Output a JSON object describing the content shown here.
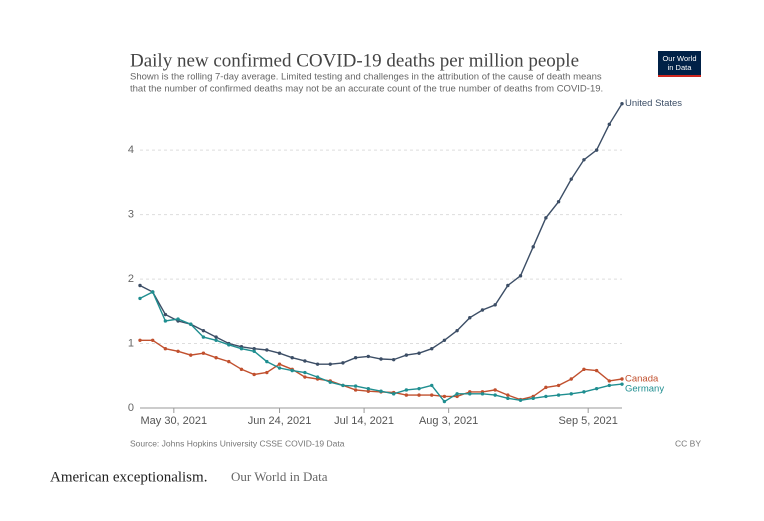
{
  "chart_data": {
    "type": "line",
    "title": "Daily new confirmed COVID-19 deaths per million people",
    "subtitle": [
      "Shown is the rolling 7-day average. Limited testing and challenges in the attribution of the cause of death means",
      "that the number of confirmed deaths may not be an accurate count of the true number of deaths from COVID-19."
    ],
    "logo": [
      "Our World",
      "in Data"
    ],
    "source": "Source: Johns Hopkins University CSSE COVID-19 Data",
    "license": "CC BY",
    "x": [
      "2021-05-22",
      "2021-05-25",
      "2021-05-28",
      "2021-05-31",
      "2021-06-03",
      "2021-06-06",
      "2021-06-09",
      "2021-06-12",
      "2021-06-15",
      "2021-06-18",
      "2021-06-21",
      "2021-06-24",
      "2021-06-27",
      "2021-06-30",
      "2021-07-03",
      "2021-07-06",
      "2021-07-09",
      "2021-07-12",
      "2021-07-15",
      "2021-07-18",
      "2021-07-21",
      "2021-07-24",
      "2021-07-27",
      "2021-07-30",
      "2021-08-02",
      "2021-08-05",
      "2021-08-08",
      "2021-08-11",
      "2021-08-14",
      "2021-08-17",
      "2021-08-20",
      "2021-08-23",
      "2021-08-26",
      "2021-08-29",
      "2021-09-01",
      "2021-09-04",
      "2021-09-07",
      "2021-09-10",
      "2021-09-13"
    ],
    "series": [
      {
        "name": "United States",
        "color": "#3c4e66",
        "values": [
          1.9,
          1.8,
          1.45,
          1.35,
          1.3,
          1.2,
          1.1,
          1.0,
          0.95,
          0.92,
          0.9,
          0.85,
          0.78,
          0.73,
          0.68,
          0.68,
          0.7,
          0.78,
          0.8,
          0.76,
          0.75,
          0.82,
          0.85,
          0.92,
          1.05,
          1.2,
          1.4,
          1.52,
          1.6,
          1.9,
          2.05,
          2.5,
          2.95,
          3.2,
          3.55,
          3.85,
          4.0,
          4.4,
          4.72
        ]
      },
      {
        "name": "Canada",
        "color": "#c1502e",
        "values": [
          1.05,
          1.05,
          0.92,
          0.88,
          0.82,
          0.85,
          0.78,
          0.72,
          0.6,
          0.52,
          0.55,
          0.68,
          0.6,
          0.48,
          0.45,
          0.42,
          0.35,
          0.28,
          0.26,
          0.25,
          0.24,
          0.2,
          0.2,
          0.2,
          0.18,
          0.18,
          0.25,
          0.25,
          0.28,
          0.2,
          0.13,
          0.18,
          0.32,
          0.35,
          0.45,
          0.6,
          0.58,
          0.42,
          0.45
        ]
      },
      {
        "name": "Germany",
        "color": "#1f8e90",
        "values": [
          1.7,
          1.8,
          1.35,
          1.38,
          1.3,
          1.1,
          1.05,
          0.98,
          0.92,
          0.88,
          0.72,
          0.62,
          0.58,
          0.55,
          0.48,
          0.4,
          0.35,
          0.34,
          0.3,
          0.26,
          0.22,
          0.28,
          0.3,
          0.35,
          0.1,
          0.22,
          0.22,
          0.22,
          0.2,
          0.15,
          0.12,
          0.15,
          0.18,
          0.2,
          0.22,
          0.25,
          0.3,
          0.35,
          0.37
        ]
      }
    ],
    "xlim": [
      "2021-05-22",
      "2021-09-13"
    ],
    "xticks": [
      {
        "value": "2021-05-30",
        "label": "May 30, 2021"
      },
      {
        "value": "2021-06-24",
        "label": "Jun 24, 2021"
      },
      {
        "value": "2021-07-14",
        "label": "Jul 14, 2021"
      },
      {
        "value": "2021-08-03",
        "label": "Aug 3, 2021"
      },
      {
        "value": "2021-09-05",
        "label": "Sep 5, 2021"
      }
    ],
    "ylim": [
      0,
      4.7
    ],
    "yticks": [
      0,
      1,
      2,
      3,
      4
    ],
    "grid": true
  },
  "caption": {
    "text": "American exceptionalism.",
    "credit": "Our World in Data"
  }
}
